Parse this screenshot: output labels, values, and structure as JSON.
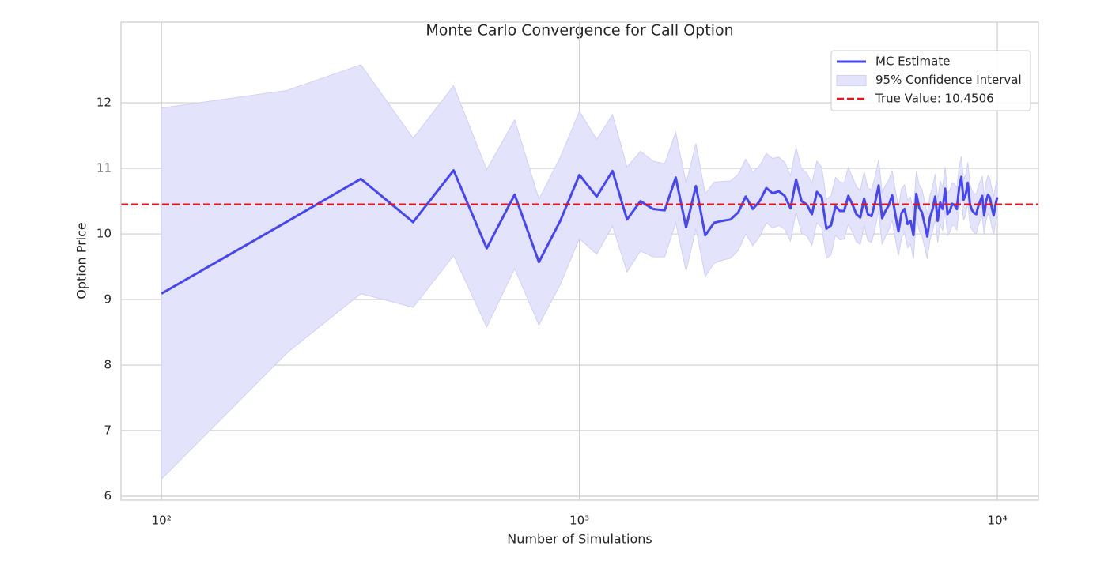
{
  "chart_data": {
    "type": "line",
    "title": "Monte Carlo Convergence for Call Option",
    "x_label": "Number of Simulations",
    "y_label": "Option Price",
    "x_scale": "log",
    "grid": true,
    "legend_position": "upper right",
    "xlim": [
      80,
      12540
    ],
    "ylim": [
      5.94,
      13.23
    ],
    "xticks": [
      {
        "value": 100,
        "label": "10²"
      },
      {
        "value": 1000,
        "label": "10³"
      },
      {
        "value": 10000,
        "label": "10⁴"
      }
    ],
    "yticks": [
      6,
      7,
      8,
      9,
      10,
      11,
      12
    ],
    "x": [
      100,
      200,
      300,
      400,
      500,
      600,
      700,
      800,
      900,
      1000,
      1100,
      1200,
      1300,
      1400,
      1500,
      1600,
      1700,
      1800,
      1900,
      2000,
      2100,
      2200,
      2300,
      2400,
      2500,
      2600,
      2700,
      2800,
      2900,
      3000,
      3100,
      3200,
      3300,
      3400,
      3500,
      3600,
      3700,
      3800,
      3900,
      4000,
      4100,
      4200,
      4300,
      4400,
      4500,
      4600,
      4700,
      4800,
      4900,
      5000,
      5100,
      5200,
      5300,
      5400,
      5500,
      5600,
      5700,
      5800,
      5900,
      6000,
      6100,
      6200,
      6300,
      6400,
      6500,
      6600,
      6700,
      6800,
      6900,
      7000,
      7100,
      7200,
      7300,
      7400,
      7500,
      7600,
      7700,
      7800,
      7900,
      8000,
      8100,
      8200,
      8300,
      8400,
      8500,
      8600,
      8700,
      8800,
      8900,
      9000,
      9100,
      9200,
      9300,
      9400,
      9500,
      9600,
      9700,
      9800,
      9900,
      10000
    ],
    "series": [
      {
        "name": "MC Estimate",
        "color": "#4646f5",
        "values": [
          9.09,
          10.19,
          10.84,
          10.18,
          10.97,
          9.78,
          10.6,
          9.57,
          10.2,
          10.9,
          10.57,
          10.96,
          10.22,
          10.5,
          10.38,
          10.36,
          10.86,
          10.1,
          10.73,
          9.98,
          10.17,
          10.2,
          10.22,
          10.33,
          10.57,
          10.38,
          10.5,
          10.7,
          10.62,
          10.65,
          10.58,
          10.39,
          10.83,
          10.5,
          10.45,
          10.3,
          10.64,
          10.56,
          10.08,
          10.13,
          10.42,
          10.35,
          10.35,
          10.58,
          10.45,
          10.3,
          10.25,
          10.54,
          10.3,
          10.27,
          10.48,
          10.74,
          10.24,
          10.35,
          10.44,
          10.59,
          10.3,
          10.04,
          10.32,
          10.38,
          10.15,
          10.2,
          9.98,
          10.61,
          10.4,
          10.33,
          10.15,
          9.96,
          10.25,
          10.38,
          10.57,
          10.2,
          10.48,
          10.38,
          10.69,
          10.3,
          10.35,
          10.46,
          10.44,
          10.38,
          10.7,
          10.87,
          10.52,
          10.6,
          10.78,
          10.45,
          10.36,
          10.32,
          10.3,
          10.42,
          10.5,
          10.58,
          10.28,
          10.5,
          10.6,
          10.55,
          10.4,
          10.28,
          10.45,
          10.56
        ]
      }
    ],
    "band": {
      "name": "95% Confidence Interval",
      "color": "#e3e3fb",
      "lower": [
        6.26,
        8.19,
        9.09,
        8.88,
        9.67,
        8.58,
        9.47,
        8.61,
        9.23,
        9.93,
        9.69,
        10.12,
        9.42,
        9.74,
        9.65,
        9.65,
        10.17,
        9.43,
        10.08,
        9.35,
        9.55,
        9.6,
        9.63,
        9.75,
        10.0,
        9.82,
        9.96,
        10.17,
        10.09,
        10.13,
        10.07,
        9.89,
        10.34,
        10.01,
        9.97,
        9.83,
        10.17,
        10.1,
        9.63,
        9.68,
        9.98,
        9.91,
        9.92,
        10.15,
        10.03,
        9.88,
        9.84,
        10.13,
        9.9,
        9.87,
        10.08,
        10.35,
        9.85,
        9.96,
        10.06,
        10.21,
        9.93,
        9.67,
        9.95,
        10.01,
        9.79,
        9.84,
        9.62,
        10.26,
        10.05,
        9.98,
        9.8,
        9.62,
        9.91,
        10.04,
        10.23,
        9.87,
        10.15,
        10.05,
        10.36,
        9.98,
        10.03,
        10.14,
        10.12,
        10.06,
        10.39,
        10.56,
        10.21,
        10.29,
        10.47,
        10.14,
        10.06,
        10.02,
        10.0,
        10.12,
        10.2,
        10.28,
        9.99,
        10.21,
        10.31,
        10.26,
        10.11,
        9.99,
        10.17,
        10.28
      ],
      "upper": [
        11.92,
        12.19,
        12.58,
        11.46,
        12.26,
        10.98,
        11.74,
        10.53,
        11.17,
        11.87,
        11.44,
        11.82,
        11.02,
        11.26,
        11.11,
        11.07,
        11.55,
        10.77,
        11.38,
        10.61,
        10.79,
        10.8,
        10.81,
        10.91,
        11.14,
        10.94,
        11.04,
        11.23,
        11.15,
        11.17,
        11.09,
        10.89,
        11.32,
        10.99,
        10.93,
        10.77,
        11.11,
        11.02,
        10.53,
        10.58,
        10.86,
        10.79,
        10.78,
        11.01,
        10.87,
        10.72,
        10.66,
        10.95,
        10.7,
        10.67,
        10.88,
        11.13,
        10.63,
        10.74,
        10.82,
        10.97,
        10.67,
        10.41,
        10.69,
        10.75,
        10.51,
        10.56,
        10.34,
        10.96,
        10.75,
        10.68,
        10.5,
        10.3,
        10.59,
        10.72,
        10.91,
        10.53,
        10.81,
        10.71,
        11.02,
        10.62,
        10.67,
        10.78,
        10.76,
        10.7,
        11.01,
        11.18,
        10.83,
        10.91,
        11.09,
        10.76,
        10.66,
        10.62,
        10.6,
        10.72,
        10.8,
        10.88,
        10.57,
        10.79,
        10.89,
        10.84,
        10.69,
        10.57,
        10.73,
        10.84
      ]
    },
    "reference": {
      "name": "True Value: 10.4506",
      "value": 10.4506,
      "color": "#e8141c"
    }
  }
}
